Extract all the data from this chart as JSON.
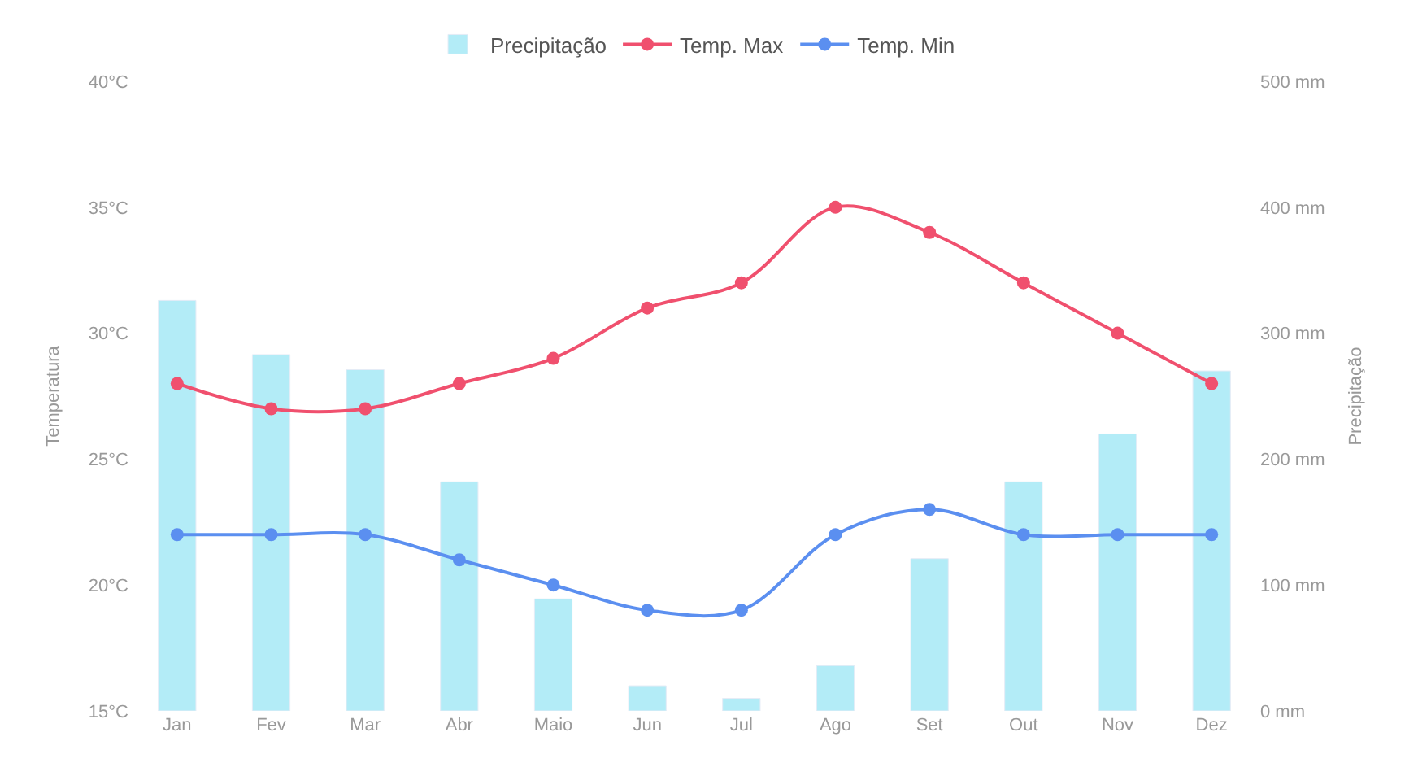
{
  "chart_data": {
    "type": "bar",
    "categories": [
      "Jan",
      "Fev",
      "Mar",
      "Abr",
      "Maio",
      "Jun",
      "Jul",
      "Ago",
      "Set",
      "Out",
      "Nov",
      "Dez"
    ],
    "ylabel": "Temperatura",
    "y2label": "Precipitação",
    "series": [
      {
        "name": "Precipitação",
        "axis": "y2",
        "color": "#b3ecf7",
        "values": [
          326,
          283,
          271,
          182,
          89,
          20,
          10,
          36,
          121,
          182,
          220,
          270
        ]
      },
      {
        "name": "Temp. Max",
        "type": "line",
        "color": "#f0506e",
        "values": [
          28,
          27,
          27,
          28,
          29,
          31,
          32,
          35,
          34,
          32,
          30,
          28
        ]
      },
      {
        "name": "Temp. Min",
        "type": "line",
        "color": "#5b8ff0",
        "values": [
          22,
          22,
          22,
          21,
          20,
          19,
          19,
          22,
          23,
          22,
          22,
          22
        ]
      }
    ],
    "ylim": [
      15,
      40
    ],
    "yticks": [
      {
        "value": 15,
        "label": "15°C"
      },
      {
        "value": 20,
        "label": "20°C"
      },
      {
        "value": 25,
        "label": "25°C"
      },
      {
        "value": 30,
        "label": "30°C"
      },
      {
        "value": 35,
        "label": "35°C"
      },
      {
        "value": 40,
        "label": "40°C"
      }
    ],
    "y2lim": [
      0,
      500
    ],
    "y2ticks": [
      {
        "value": 0,
        "label": "0 mm"
      },
      {
        "value": 100,
        "label": "100 mm"
      },
      {
        "value": 200,
        "label": "200 mm"
      },
      {
        "value": 300,
        "label": "300 mm"
      },
      {
        "value": 400,
        "label": "400 mm"
      },
      {
        "value": 500,
        "label": "500 mm"
      }
    ],
    "legend": "top",
    "marker": "circle"
  }
}
